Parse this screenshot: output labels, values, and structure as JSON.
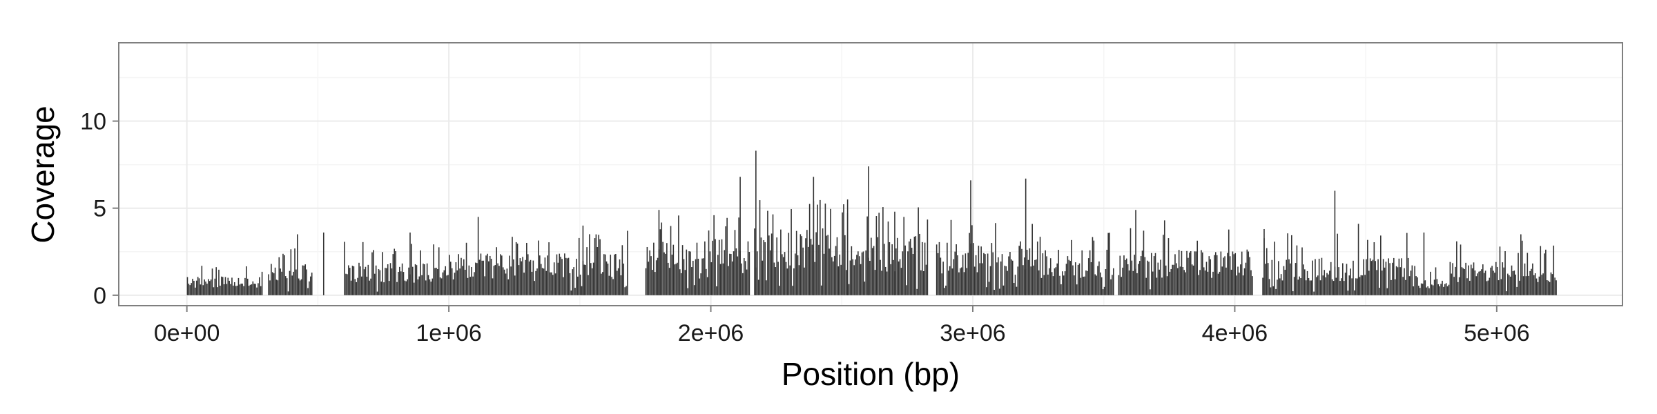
{
  "chart_data": {
    "type": "bar",
    "title": "",
    "xlabel": "Position (bp)",
    "ylabel": "Coverage",
    "xlim": [
      -260000,
      5480000
    ],
    "ylim": [
      -0.6,
      14.5
    ],
    "x_ticks": [
      {
        "value": 0,
        "label": "0e+00"
      },
      {
        "value": 1000000,
        "label": "1e+06"
      },
      {
        "value": 2000000,
        "label": "2e+06"
      },
      {
        "value": 3000000,
        "label": "3e+06"
      },
      {
        "value": 4000000,
        "label": "4e+06"
      },
      {
        "value": 5000000,
        "label": "5e+06"
      }
    ],
    "y_ticks": [
      {
        "value": 0,
        "label": "0"
      },
      {
        "value": 5,
        "label": "5"
      },
      {
        "value": 10,
        "label": "10"
      }
    ],
    "grid": true,
    "bin_width": 5000,
    "region_profile": [
      {
        "x": [
          0,
          300000
        ],
        "level": 0.9,
        "peak": 1.6
      },
      {
        "x": [
          300000,
          560000
        ],
        "level": 1.5,
        "peak": 2.6
      },
      {
        "x": [
          600000,
          1000000
        ],
        "level": 1.6,
        "peak": 2.8
      },
      {
        "x": [
          1000000,
          1700000
        ],
        "level": 2.0,
        "peak": 3.2
      },
      {
        "x": [
          1750000,
          2150000
        ],
        "level": 2.7,
        "peak": 4.2
      },
      {
        "x": [
          2150000,
          2550000
        ],
        "level": 3.2,
        "peak": 5.0
      },
      {
        "x": [
          2550000,
          2850000
        ],
        "level": 3.0,
        "peak": 4.6
      },
      {
        "x": [
          2850000,
          3250000
        ],
        "level": 2.6,
        "peak": 4.0
      },
      {
        "x": [
          3250000,
          3650000
        ],
        "level": 2.2,
        "peak": 3.6
      },
      {
        "x": [
          3650000,
          4080000
        ],
        "level": 2.2,
        "peak": 3.6
      },
      {
        "x": [
          4100000,
          4700000
        ],
        "level": 1.8,
        "peak": 3.2
      },
      {
        "x": [
          4700000,
          4820000
        ],
        "level": 0.8,
        "peak": 1.6
      },
      {
        "x": [
          4820000,
          5230000
        ],
        "level": 1.6,
        "peak": 2.8
      }
    ],
    "gaps": [
      [
        290000,
        310000
      ],
      [
        480000,
        600000
      ],
      [
        1680000,
        1730000
      ],
      [
        2150000,
        2165000
      ],
      [
        2830000,
        2860000
      ],
      [
        3540000,
        3555000
      ],
      [
        4070000,
        4105000
      ]
    ],
    "spikes": [
      {
        "x": 2170000,
        "y": 8.3
      },
      {
        "x": 2600000,
        "y": 7.4
      },
      {
        "x": 2110000,
        "y": 6.8
      },
      {
        "x": 2390000,
        "y": 6.8
      },
      {
        "x": 3200000,
        "y": 6.7
      },
      {
        "x": 2990000,
        "y": 6.6
      },
      {
        "x": 4380000,
        "y": 6.0
      },
      {
        "x": 2520000,
        "y": 5.5
      },
      {
        "x": 1800000,
        "y": 4.9
      },
      {
        "x": 3620000,
        "y": 4.9
      },
      {
        "x": 2700000,
        "y": 4.8
      },
      {
        "x": 4110000,
        "y": 3.8
      },
      {
        "x": 4470000,
        "y": 4.1
      },
      {
        "x": 4720000,
        "y": 3.6
      },
      {
        "x": 5090000,
        "y": 3.5
      },
      {
        "x": 420000,
        "y": 3.5
      },
      {
        "x": 520000,
        "y": 3.6
      },
      {
        "x": 850000,
        "y": 3.6
      },
      {
        "x": 1110000,
        "y": 4.5
      },
      {
        "x": 1510000,
        "y": 4.0
      },
      {
        "x": 1680000,
        "y": 3.7
      },
      {
        "x": 3730000,
        "y": 4.3
      }
    ],
    "bar_color": "#333333"
  },
  "style": {
    "panel_background": "#ffffff",
    "panel_border": "#7f7f7f",
    "major_grid": "#ebebeb",
    "minor_grid": "#f5f5f5",
    "axis_tick": "#7f7f7f"
  }
}
